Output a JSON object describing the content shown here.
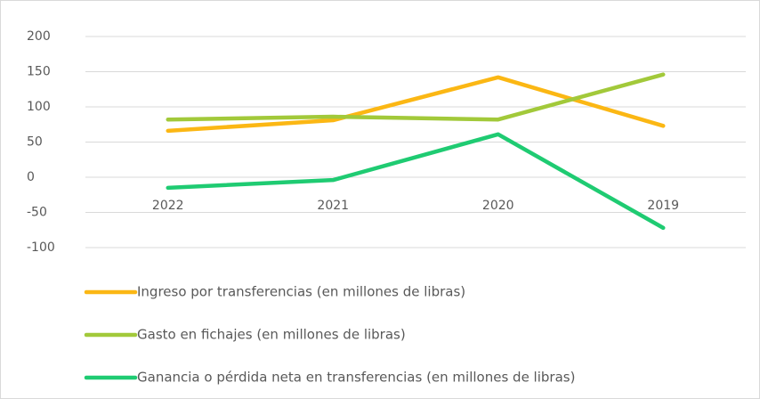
{
  "chart_data": {
    "type": "line",
    "categories": [
      "2022",
      "2021",
      "2020",
      "2019"
    ],
    "series": [
      {
        "name": "Ingreso por transferencias (en millones de libras)",
        "color": "#fbb714",
        "values": [
          66,
          81,
          142,
          73
        ]
      },
      {
        "name": "Gasto en fichajes (en millones de libras)",
        "color": "#a2c93a",
        "values": [
          82,
          86,
          82,
          146
        ]
      },
      {
        "name": "Ganancia o pérdida neta en transferencias (en millones de libras)",
        "color": "#1fcb72",
        "values": [
          -15,
          -4,
          61,
          -72
        ]
      }
    ],
    "ylim": [
      -100,
      200
    ],
    "yticks": [
      -100,
      -50,
      0,
      50,
      100,
      150,
      200
    ],
    "grid": true,
    "legend": "bottom"
  }
}
